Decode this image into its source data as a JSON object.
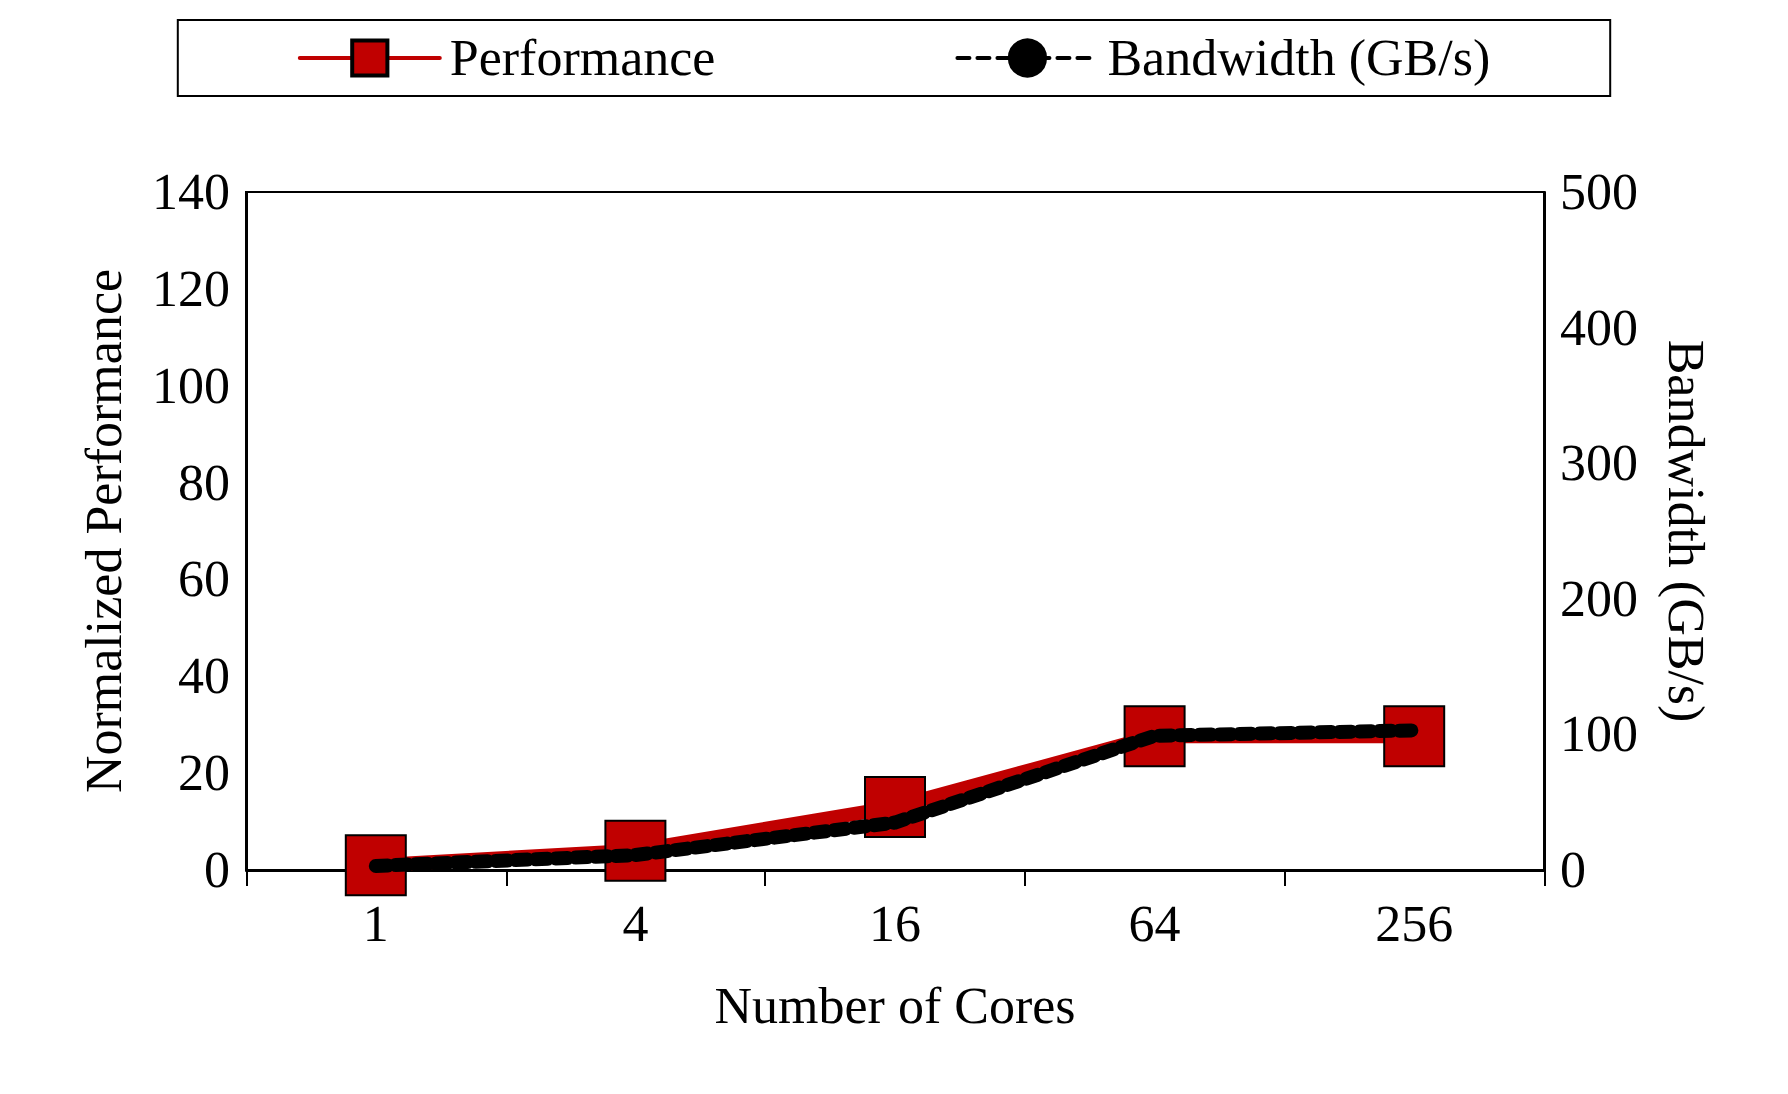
{
  "chart_data": {
    "type": "line",
    "xlabel": "Number of Cores",
    "ylabel": "Normalized Performance",
    "y2label": "Bandwidth (GB/s)",
    "categories": [
      "1",
      "4",
      "16",
      "64",
      "256"
    ],
    "series": [
      {
        "name": "Performance",
        "color": "#c00000",
        "values": [
          1,
          4,
          13,
          27.6,
          27.6
        ],
        "marker": "square",
        "line_style": "solid"
      },
      {
        "name": "Bandwidth (GB/s)",
        "color": "#000000",
        "values": [
          3,
          11,
          35,
          99,
          103
        ],
        "axis": "y2",
        "marker": "none",
        "line_style": "dashed"
      }
    ],
    "ylim": [
      0,
      140
    ],
    "yticks": [
      0,
      20,
      40,
      60,
      80,
      100,
      120,
      140
    ],
    "y2lim": [
      0,
      500
    ],
    "y2ticks": [
      0,
      100,
      200,
      300,
      400,
      500
    ],
    "grid": false,
    "legend": "top"
  }
}
